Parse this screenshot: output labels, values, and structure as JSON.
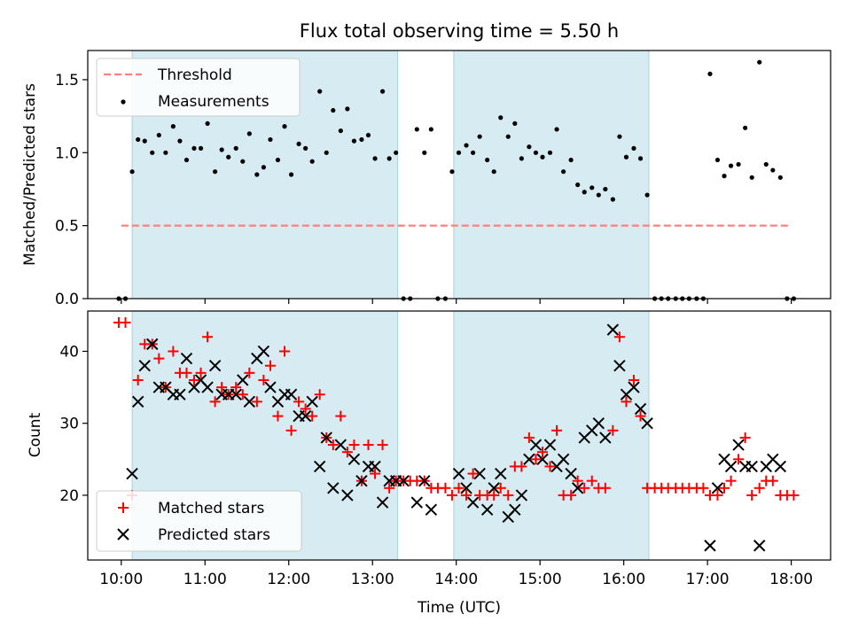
{
  "chart_data": [
    {
      "type": "scatter",
      "title": "Flux total observing time = 5.50 h",
      "xlabel": "",
      "ylabel": "Matched/Predicted stars",
      "xlim": [
        9.6,
        18.47
      ],
      "ylim": [
        0.0,
        1.7
      ],
      "yticks": [
        0.0,
        0.5,
        1.0,
        1.5
      ],
      "ytick_labels": [
        "0.0",
        "0.5",
        "1.0",
        "1.5"
      ],
      "shaded_intervals": [
        [
          10.13,
          13.3
        ],
        [
          13.97,
          16.3
        ]
      ],
      "threshold": {
        "name": "Threshold",
        "value": 0.5,
        "x_range": [
          10.0,
          18.0
        ],
        "color": "#ff7f7f"
      },
      "legend": {
        "placement": "upper-left",
        "entries": [
          "Threshold",
          "Measurements"
        ]
      },
      "series": [
        {
          "name": "Measurements",
          "color": "#000000",
          "x": [
            9.97,
            10.05,
            10.13,
            10.2,
            10.28,
            10.37,
            10.45,
            10.53,
            10.62,
            10.7,
            10.78,
            10.87,
            10.95,
            11.03,
            11.12,
            11.2,
            11.28,
            11.37,
            11.45,
            11.53,
            11.62,
            11.7,
            11.78,
            11.87,
            11.95,
            12.03,
            12.12,
            12.2,
            12.28,
            12.37,
            12.45,
            12.53,
            12.62,
            12.7,
            12.78,
            12.87,
            12.95,
            13.03,
            13.12,
            13.2,
            13.28,
            13.37,
            13.45,
            13.53,
            13.62,
            13.7,
            13.78,
            13.87,
            13.95,
            14.03,
            14.12,
            14.2,
            14.28,
            14.37,
            14.45,
            14.53,
            14.62,
            14.7,
            14.78,
            14.87,
            14.95,
            15.03,
            15.12,
            15.2,
            15.28,
            15.37,
            15.45,
            15.53,
            15.62,
            15.7,
            15.78,
            15.87,
            15.95,
            16.03,
            16.12,
            16.2,
            16.28,
            16.37,
            16.45,
            16.53,
            16.62,
            16.7,
            16.78,
            16.87,
            16.95,
            17.03,
            17.12,
            17.2,
            17.28,
            17.37,
            17.45,
            17.53,
            17.62,
            17.7,
            17.78,
            17.87,
            17.95,
            18.03
          ],
          "y": [
            0.0,
            0.0,
            0.87,
            1.09,
            1.08,
            1.0,
            1.12,
            1.0,
            1.18,
            1.08,
            0.95,
            1.03,
            1.03,
            1.2,
            0.87,
            1.02,
            0.97,
            1.03,
            0.94,
            1.13,
            0.85,
            0.9,
            1.09,
            0.95,
            1.18,
            0.85,
            1.06,
            1.03,
            0.94,
            1.42,
            1.0,
            1.29,
            1.15,
            1.3,
            1.08,
            1.09,
            1.12,
            0.96,
            1.42,
            0.96,
            1.0,
            0.0,
            0.0,
            1.16,
            1.0,
            1.16,
            0.0,
            0.0,
            0.87,
            1.0,
            1.05,
            1.0,
            1.11,
            0.95,
            0.87,
            1.24,
            1.11,
            1.2,
            0.96,
            1.04,
            1.0,
            0.97,
            1.0,
            1.16,
            0.87,
            0.95,
            0.78,
            0.73,
            0.76,
            0.71,
            0.75,
            0.68,
            1.11,
            0.97,
            1.03,
            0.96,
            0.71,
            0.0,
            0.0,
            0.0,
            0.0,
            0.0,
            0.0,
            0.0,
            0.0,
            1.54,
            0.95,
            0.84,
            0.91,
            0.92,
            1.17,
            0.83,
            1.62,
            0.92,
            0.88,
            0.83,
            0.0,
            0.0
          ]
        }
      ]
    },
    {
      "type": "scatter",
      "title": "",
      "xlabel": "Time (UTC)",
      "ylabel": "Count",
      "xlim": [
        9.6,
        18.47
      ],
      "ylim": [
        11.0,
        45.6
      ],
      "xticks": [
        10,
        11,
        12,
        13,
        14,
        15,
        16,
        17,
        18
      ],
      "xtick_labels": [
        "10:00",
        "11:00",
        "12:00",
        "13:00",
        "14:00",
        "15:00",
        "16:00",
        "17:00",
        "18:00"
      ],
      "yticks": [
        20,
        30,
        40
      ],
      "ytick_labels": [
        "20",
        "30",
        "40"
      ],
      "shaded_intervals": [
        [
          10.13,
          13.3
        ],
        [
          13.97,
          16.3
        ]
      ],
      "legend": {
        "placement": "lower-left",
        "entries": [
          "Matched stars",
          "Predicted stars"
        ]
      },
      "series": [
        {
          "name": "Matched stars",
          "marker": "plus",
          "color": "#ff0000",
          "x": [
            9.97,
            10.05,
            10.13,
            10.2,
            10.28,
            10.37,
            10.45,
            10.53,
            10.62,
            10.7,
            10.78,
            10.87,
            10.95,
            11.03,
            11.12,
            11.2,
            11.28,
            11.37,
            11.45,
            11.53,
            11.62,
            11.7,
            11.78,
            11.87,
            11.95,
            12.03,
            12.12,
            12.2,
            12.28,
            12.37,
            12.45,
            12.53,
            12.62,
            12.7,
            12.78,
            12.87,
            12.95,
            13.03,
            13.12,
            13.2,
            13.28,
            13.37,
            13.45,
            13.53,
            13.62,
            13.7,
            13.78,
            13.87,
            13.95,
            14.03,
            14.12,
            14.2,
            14.28,
            14.37,
            14.45,
            14.53,
            14.62,
            14.7,
            14.78,
            14.87,
            14.95,
            15.03,
            15.12,
            15.2,
            15.28,
            15.37,
            15.45,
            15.53,
            15.62,
            15.7,
            15.78,
            15.87,
            15.95,
            16.03,
            16.12,
            16.2,
            16.28,
            16.37,
            16.45,
            16.53,
            16.62,
            16.7,
            16.78,
            16.87,
            16.95,
            17.03,
            17.12,
            17.2,
            17.28,
            17.37,
            17.45,
            17.53,
            17.62,
            17.7,
            17.78,
            17.87,
            17.95,
            18.03
          ],
          "y": [
            44,
            44,
            20,
            36,
            41,
            41,
            39,
            35,
            40,
            37,
            37,
            36,
            37,
            42,
            33,
            35,
            34,
            35,
            34,
            37,
            33,
            36,
            38,
            31,
            40,
            29,
            33,
            32,
            31,
            34,
            28,
            27,
            31,
            26,
            27,
            22,
            27,
            23,
            27,
            21,
            22,
            22,
            22,
            22,
            22,
            21,
            21,
            21,
            20,
            21,
            20,
            23,
            20,
            20,
            20,
            21,
            20,
            24,
            24,
            28,
            25,
            26,
            24,
            29,
            20,
            20,
            22,
            21,
            22,
            21,
            21,
            29,
            42,
            33,
            36,
            31,
            21,
            21,
            21,
            21,
            21,
            21,
            21,
            21,
            21,
            20,
            20,
            21,
            22,
            25,
            28,
            20,
            21,
            22,
            22,
            20,
            20,
            20
          ]
        },
        {
          "name": "Predicted stars",
          "marker": "x",
          "color": "#000000",
          "x": [
            10.13,
            10.2,
            10.28,
            10.37,
            10.45,
            10.53,
            10.62,
            10.7,
            10.78,
            10.87,
            10.95,
            11.03,
            11.12,
            11.2,
            11.28,
            11.37,
            11.45,
            11.53,
            11.62,
            11.7,
            11.78,
            11.87,
            11.95,
            12.03,
            12.12,
            12.2,
            12.28,
            12.37,
            12.45,
            12.53,
            12.62,
            12.7,
            12.78,
            12.87,
            12.95,
            13.03,
            13.12,
            13.2,
            13.28,
            13.37,
            13.53,
            13.62,
            13.7,
            14.03,
            14.12,
            14.2,
            14.28,
            14.37,
            14.45,
            14.53,
            14.62,
            14.7,
            14.78,
            14.87,
            14.95,
            15.03,
            15.12,
            15.2,
            15.28,
            15.37,
            15.45,
            15.53,
            15.62,
            15.7,
            15.78,
            15.87,
            15.95,
            16.03,
            16.12,
            16.2,
            16.28,
            17.03,
            17.12,
            17.2,
            17.28,
            17.37,
            17.45,
            17.53,
            17.62,
            17.7,
            17.78,
            17.87
          ],
          "y": [
            23,
            33,
            38,
            41,
            35,
            35,
            34,
            34,
            39,
            35,
            36,
            35,
            38,
            34,
            34,
            34,
            36,
            33,
            39,
            40,
            35,
            33,
            34,
            34,
            31,
            31,
            33,
            24,
            28,
            21,
            27,
            20,
            25,
            22,
            24,
            24,
            19,
            22,
            22,
            22,
            19,
            22,
            18,
            23,
            21,
            19,
            23,
            18,
            21,
            23,
            17,
            18,
            20,
            25,
            27,
            25,
            27,
            24,
            25,
            23,
            21,
            28,
            29,
            30,
            28,
            43,
            38,
            34,
            35,
            32,
            30,
            13,
            21,
            25,
            24,
            27,
            24,
            24,
            13,
            24,
            25,
            24
          ]
        }
      ]
    }
  ]
}
